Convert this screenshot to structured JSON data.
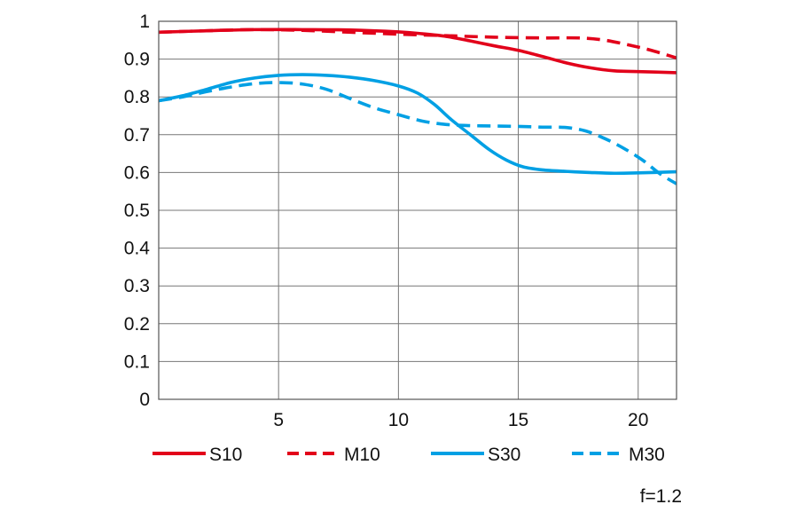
{
  "chart_data": {
    "type": "line",
    "title": "",
    "xlabel": "",
    "ylabel": "",
    "xlim": [
      0,
      21.6
    ],
    "ylim": [
      0,
      1
    ],
    "grid": true,
    "legend_position": "bottom",
    "x_ticks": [
      {
        "value": 5,
        "label": "5"
      },
      {
        "value": 10,
        "label": "10"
      },
      {
        "value": 15,
        "label": "15"
      },
      {
        "value": 20,
        "label": "20"
      }
    ],
    "y_ticks": [
      {
        "value": 0,
        "label": "0"
      },
      {
        "value": 0.1,
        "label": "0.1"
      },
      {
        "value": 0.2,
        "label": "0.2"
      },
      {
        "value": 0.3,
        "label": "0.3"
      },
      {
        "value": 0.4,
        "label": "0.4"
      },
      {
        "value": 0.5,
        "label": "0.5"
      },
      {
        "value": 0.6,
        "label": "0.6"
      },
      {
        "value": 0.7,
        "label": "0.7"
      },
      {
        "value": 0.8,
        "label": "0.8"
      },
      {
        "value": 0.9,
        "label": "0.9"
      },
      {
        "value": 1,
        "label": "1"
      }
    ],
    "series": [
      {
        "name": "S10",
        "color": "#e2001a",
        "dash": "solid",
        "points": [
          [
            0,
            0.971
          ],
          [
            2,
            0.975
          ],
          [
            4,
            0.978
          ],
          [
            6,
            0.978
          ],
          [
            8,
            0.977
          ],
          [
            10,
            0.972
          ],
          [
            11,
            0.967
          ],
          [
            12,
            0.96
          ],
          [
            13,
            0.948
          ],
          [
            14,
            0.935
          ],
          [
            15,
            0.923
          ],
          [
            16,
            0.907
          ],
          [
            17,
            0.89
          ],
          [
            18,
            0.877
          ],
          [
            19,
            0.869
          ],
          [
            20,
            0.867
          ],
          [
            21.6,
            0.864
          ]
        ]
      },
      {
        "name": "M10",
        "color": "#e2001a",
        "dash": "dashed",
        "points": [
          [
            0,
            0.971
          ],
          [
            2,
            0.975
          ],
          [
            4,
            0.978
          ],
          [
            6,
            0.976
          ],
          [
            8,
            0.971
          ],
          [
            10,
            0.966
          ],
          [
            12,
            0.962
          ],
          [
            14,
            0.958
          ],
          [
            16,
            0.956
          ],
          [
            17.5,
            0.956
          ],
          [
            18.5,
            0.951
          ],
          [
            19.5,
            0.939
          ],
          [
            20.5,
            0.924
          ],
          [
            21.6,
            0.903
          ]
        ]
      },
      {
        "name": "S30",
        "color": "#00a0e4",
        "dash": "solid",
        "points": [
          [
            0,
            0.79
          ],
          [
            1,
            0.803
          ],
          [
            2,
            0.82
          ],
          [
            3,
            0.838
          ],
          [
            4,
            0.85
          ],
          [
            5,
            0.857
          ],
          [
            6,
            0.859
          ],
          [
            7,
            0.857
          ],
          [
            8,
            0.852
          ],
          [
            9,
            0.843
          ],
          [
            10,
            0.829
          ],
          [
            10.8,
            0.81
          ],
          [
            11.5,
            0.78
          ],
          [
            12.2,
            0.74
          ],
          [
            13,
            0.7
          ],
          [
            13.8,
            0.66
          ],
          [
            14.5,
            0.633
          ],
          [
            15.2,
            0.615
          ],
          [
            16,
            0.607
          ],
          [
            17,
            0.603
          ],
          [
            18,
            0.6
          ],
          [
            19,
            0.598
          ],
          [
            20,
            0.599
          ],
          [
            21.6,
            0.602
          ]
        ]
      },
      {
        "name": "M30",
        "color": "#00a0e4",
        "dash": "dashed",
        "points": [
          [
            0,
            0.79
          ],
          [
            1,
            0.8
          ],
          [
            2,
            0.814
          ],
          [
            3,
            0.826
          ],
          [
            4,
            0.835
          ],
          [
            5,
            0.838
          ],
          [
            6,
            0.834
          ],
          [
            7,
            0.82
          ],
          [
            8,
            0.795
          ],
          [
            9,
            0.771
          ],
          [
            10,
            0.753
          ],
          [
            11,
            0.736
          ],
          [
            12,
            0.727
          ],
          [
            13,
            0.724
          ],
          [
            14,
            0.723
          ],
          [
            15,
            0.722
          ],
          [
            16,
            0.72
          ],
          [
            17,
            0.719
          ],
          [
            17.8,
            0.71
          ],
          [
            18.6,
            0.69
          ],
          [
            19.4,
            0.664
          ],
          [
            20.2,
            0.632
          ],
          [
            20.9,
            0.597
          ],
          [
            21.6,
            0.57
          ]
        ]
      }
    ],
    "legend": [
      {
        "label": "S10"
      },
      {
        "label": "M10"
      },
      {
        "label": "S30"
      },
      {
        "label": "M30"
      }
    ],
    "annotation": "f=1.2"
  }
}
